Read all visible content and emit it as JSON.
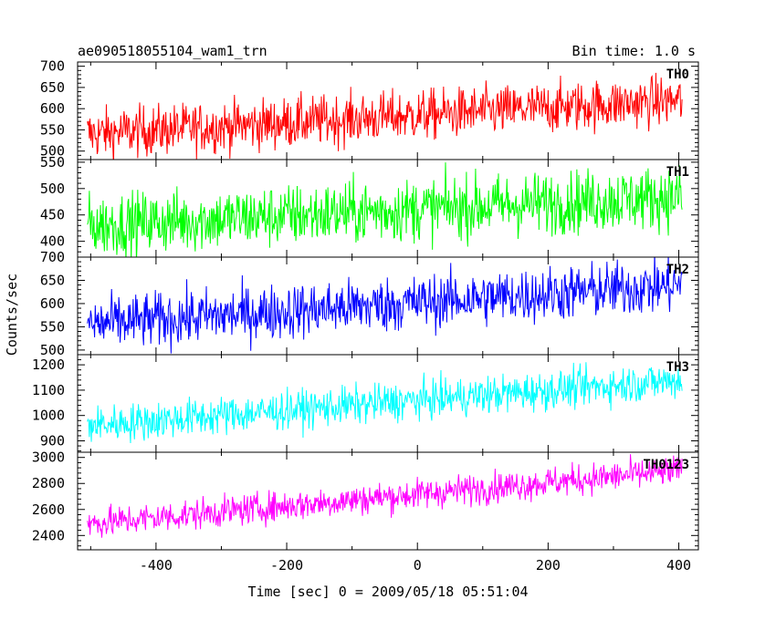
{
  "chart_data": {
    "type": "line",
    "title": "ae090518055104_wam1_trn",
    "bin_time_label": "Bin time: 1.0 s",
    "xlabel": "Time [sec] 0 = 2009/05/18 05:51:04",
    "ylabel": "Counts/sec",
    "x_range": [
      -505,
      405
    ],
    "xlim": [
      -520,
      430
    ],
    "x_ticks": [
      -400,
      -200,
      0,
      200,
      400
    ],
    "grid": false,
    "panels": [
      {
        "name": "TH0",
        "color": "#ff0000",
        "ylim": [
          480,
          710
        ],
        "y_ticks": [
          500,
          550,
          600,
          650,
          700
        ],
        "trend": [
          540,
          620
        ],
        "noise": 30
      },
      {
        "name": "TH1",
        "color": "#00ff00",
        "ylim": [
          370,
          555
        ],
        "y_ticks": [
          400,
          450,
          500,
          550
        ],
        "trend": [
          430,
          485
        ],
        "noise": 30
      },
      {
        "name": "TH2",
        "color": "#0000ff",
        "ylim": [
          490,
          700
        ],
        "y_ticks": [
          500,
          550,
          600,
          650,
          700
        ],
        "trend": [
          555,
          640
        ],
        "noise": 30
      },
      {
        "name": "TH3",
        "color": "#00ffff",
        "ylim": [
          855,
          1240
        ],
        "y_ticks": [
          900,
          1000,
          1100,
          1200
        ],
        "trend": [
          960,
          1140
        ],
        "noise": 38
      },
      {
        "name": "TH0123",
        "color": "#ff00ff",
        "ylim": [
          2290,
          3040
        ],
        "y_ticks": [
          2400,
          2600,
          2800,
          3000
        ],
        "trend": [
          2490,
          2900
        ],
        "noise": 60
      }
    ]
  }
}
